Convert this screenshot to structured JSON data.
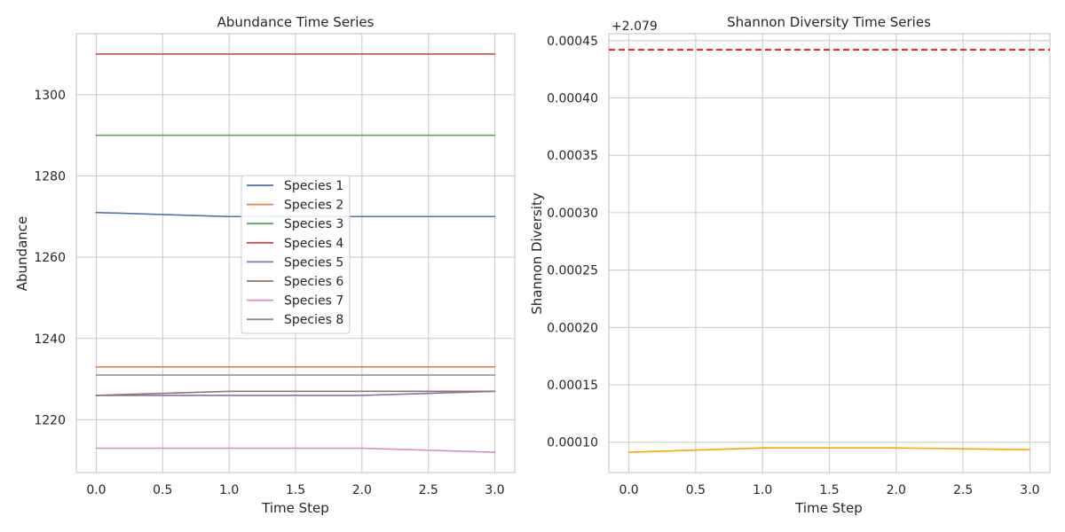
{
  "chart_data": [
    {
      "type": "line",
      "title": "Abundance Time Series",
      "xlabel": "Time Step",
      "ylabel": "Abundance",
      "xlim": [
        -0.15,
        3.15
      ],
      "ylim": [
        1207,
        1315
      ],
      "xticks": [
        "0.0",
        "0.5",
        "1.0",
        "1.5",
        "2.0",
        "2.5",
        "3.0"
      ],
      "yticks": [
        "1220",
        "1240",
        "1260",
        "1280",
        "1300"
      ],
      "grid": true,
      "legend_position": "center",
      "x": [
        0,
        1,
        2,
        3
      ],
      "series": [
        {
          "name": "Species 1",
          "color": "#4c72b0",
          "values": [
            1271,
            1270,
            1270,
            1270
          ]
        },
        {
          "name": "Species 2",
          "color": "#dd8452",
          "values": [
            1233,
            1233,
            1233,
            1233
          ]
        },
        {
          "name": "Species 3",
          "color": "#55a868",
          "values": [
            1290,
            1290,
            1290,
            1290
          ]
        },
        {
          "name": "Species 4",
          "color": "#c44e52",
          "values": [
            1310,
            1310,
            1310,
            1310
          ]
        },
        {
          "name": "Species 5",
          "color": "#8172b3",
          "values": [
            1226,
            1226,
            1226,
            1227
          ]
        },
        {
          "name": "Species 6",
          "color": "#937860",
          "values": [
            1226,
            1227,
            1227,
            1227
          ]
        },
        {
          "name": "Species 7",
          "color": "#da8bc3",
          "values": [
            1213,
            1213,
            1213,
            1212
          ]
        },
        {
          "name": "Species 8",
          "color": "#8c8c8c",
          "values": [
            1231,
            1231,
            1231,
            1231
          ]
        }
      ]
    },
    {
      "type": "line",
      "title": "Shannon Diversity Time Series",
      "xlabel": "Time Step",
      "ylabel": "Shannon Diversity",
      "offset_label": "+2.079",
      "xlim": [
        -0.15,
        3.15
      ],
      "ylim": [
        7.35e-05,
        0.000456
      ],
      "xticks": [
        "0.0",
        "0.5",
        "1.0",
        "1.5",
        "2.0",
        "2.5",
        "3.0"
      ],
      "yticks": [
        "0.00010",
        "0.00015",
        "0.00020",
        "0.00025",
        "0.00030",
        "0.00035",
        "0.00040",
        "0.00045"
      ],
      "grid": true,
      "x": [
        0,
        1,
        2,
        3
      ],
      "series": [
        {
          "color": "#ffa500",
          "values": [
            9.12e-05,
            9.5e-05,
            9.5e-05,
            9.35e-05
          ]
        }
      ],
      "reference_line": {
        "value": 0.000442,
        "color": "#ff0000",
        "style": "dashed"
      }
    }
  ]
}
